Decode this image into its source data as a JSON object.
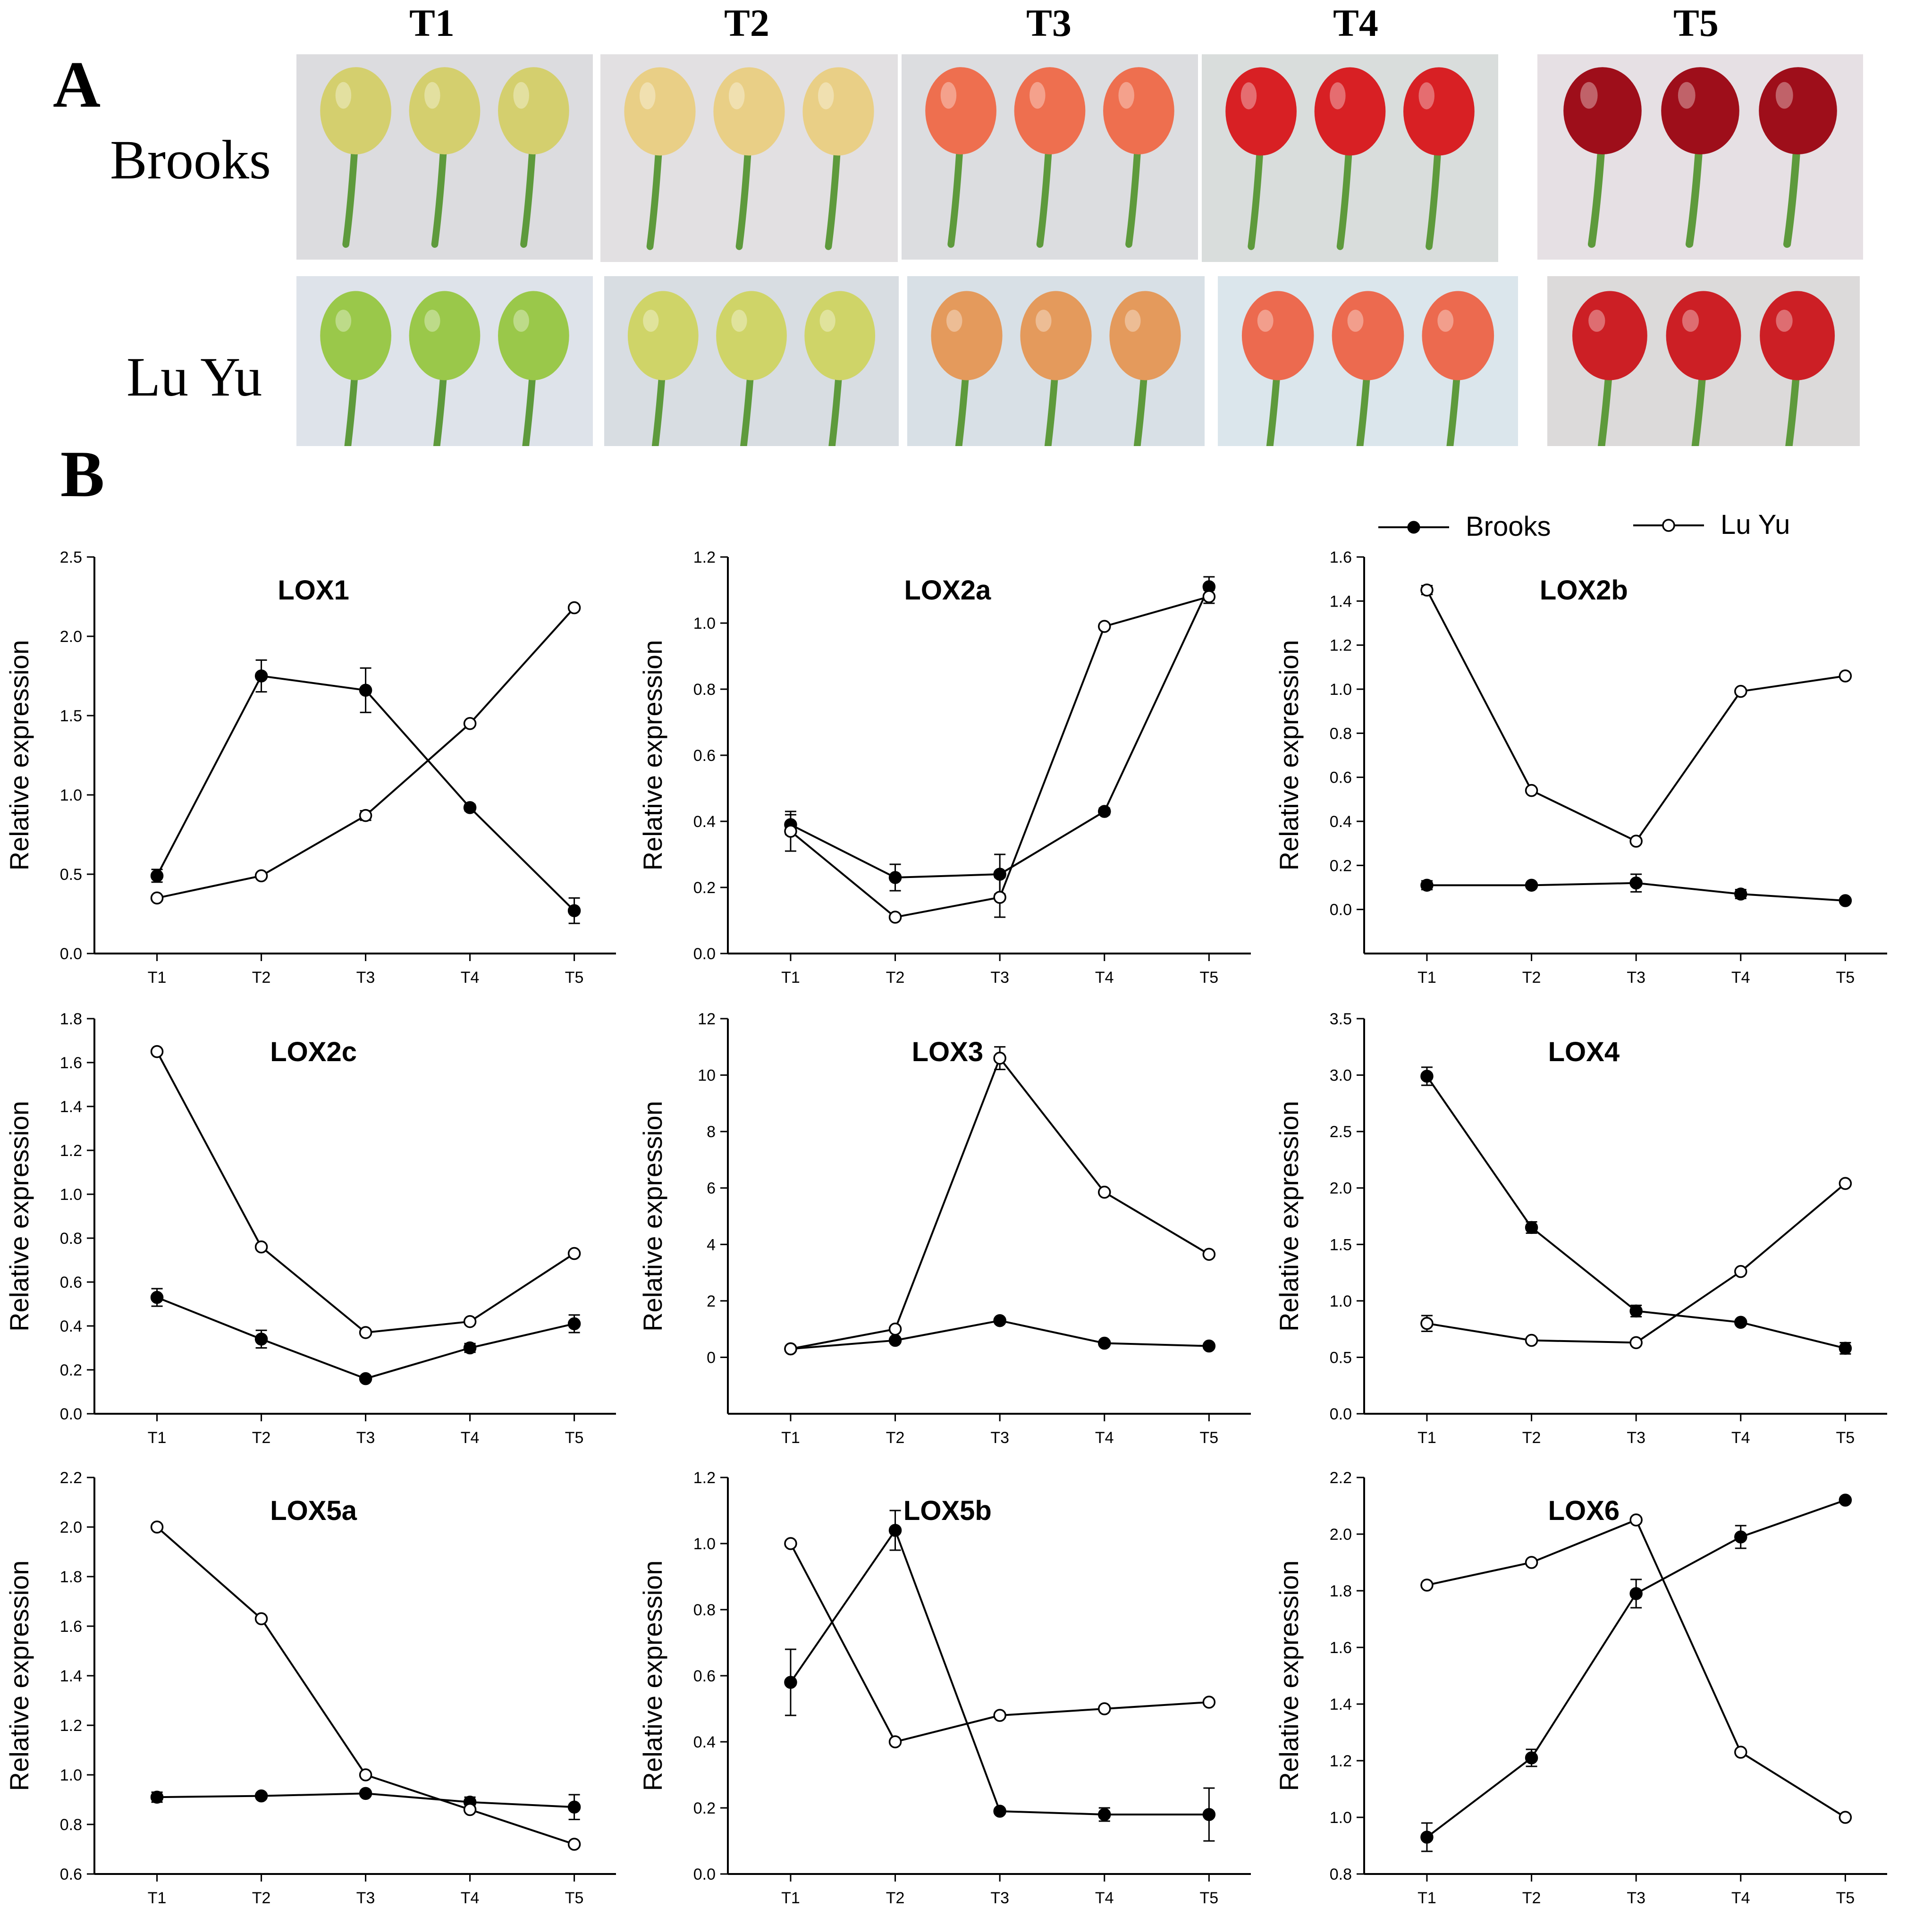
{
  "panel_a": {
    "letter": "A",
    "stages": [
      "T1",
      "T2",
      "T3",
      "T4",
      "T5"
    ],
    "rows": [
      {
        "cultivar": "Brooks",
        "fruit_colors": [
          "#d4cf6e",
          "#e9cf86",
          "#ee6f4f",
          "#d82024",
          "#9e0e1a"
        ],
        "background": [
          "#dcdcdf",
          "#e2e0e2",
          "#dcdde0",
          "#d9dddc",
          "#e6e0e4"
        ]
      },
      {
        "cultivar": "Lu Yu",
        "fruit_colors": [
          "#9ac84a",
          "#cfd468",
          "#e49a5c",
          "#ec6a4f",
          "#cc1f25"
        ],
        "background": [
          "#dee3ea",
          "#d8dde2",
          "#d8e0e6",
          "#dbe6ec",
          "#dcdada"
        ]
      }
    ],
    "stem_color": "#5e9a3c"
  },
  "panel_b": {
    "letter": "B",
    "legend": {
      "brooks": "Brooks",
      "luyu": "Lu Yu"
    }
  },
  "chart_data": [
    {
      "type": "line",
      "title": "LOX1",
      "ylabel": "Relative expression",
      "categories": [
        "T1",
        "T2",
        "T3",
        "T4",
        "T5"
      ],
      "ylim": [
        0,
        2.5
      ],
      "yticks": [
        "0.0",
        "0.5",
        "1.0",
        "1.5",
        "2.0",
        "2.5"
      ],
      "series": [
        {
          "name": "Brooks",
          "values": [
            0.49,
            1.75,
            1.66,
            0.92,
            0.27
          ],
          "err": [
            0.04,
            0.1,
            0.14,
            0.02,
            0.08
          ]
        },
        {
          "name": "Lu Yu",
          "values": [
            0.35,
            0.49,
            0.87,
            1.45,
            2.18
          ],
          "err": [
            0,
            0,
            0.03,
            0,
            0
          ]
        }
      ]
    },
    {
      "type": "line",
      "title": "LOX2a",
      "ylabel": "Relative expression",
      "categories": [
        "T1",
        "T2",
        "T3",
        "T4",
        "T5"
      ],
      "ylim": [
        0,
        1.2
      ],
      "yticks": [
        "0.0",
        "0.2",
        "0.4",
        "0.6",
        "0.8",
        "1.0",
        "1.2"
      ],
      "series": [
        {
          "name": "Brooks",
          "values": [
            0.39,
            0.23,
            0.24,
            0.43,
            1.11
          ],
          "err": [
            0.03,
            0.04,
            0.06,
            0.01,
            0.03
          ]
        },
        {
          "name": "Lu Yu",
          "values": [
            0.37,
            0.11,
            0.17,
            0.99,
            1.08
          ],
          "err": [
            0.06,
            0,
            0.06,
            0,
            0.02
          ]
        }
      ]
    },
    {
      "type": "line",
      "title": "LOX2b",
      "ylabel": "Relative expression",
      "categories": [
        "T1",
        "T2",
        "T3",
        "T4",
        "T5"
      ],
      "ylim": [
        -0.2,
        1.6
      ],
      "yticks": [
        "0.0",
        "0.2",
        "0.4",
        "0.6",
        "0.8",
        "1.0",
        "1.2",
        "1.4",
        "1.6"
      ],
      "series": [
        {
          "name": "Brooks",
          "values": [
            0.11,
            0.11,
            0.12,
            0.07,
            0.04
          ],
          "err": [
            0.02,
            0.01,
            0.04,
            0.02,
            0.01
          ]
        },
        {
          "name": "Lu Yu",
          "values": [
            1.45,
            0.54,
            0.31,
            0.99,
            1.06
          ],
          "err": [
            0.02,
            0,
            0,
            0,
            0
          ]
        }
      ]
    },
    {
      "type": "line",
      "title": "LOX2c",
      "ylabel": "Relative expression",
      "categories": [
        "T1",
        "T2",
        "T3",
        "T4",
        "T5"
      ],
      "ylim": [
        0,
        1.8
      ],
      "yticks": [
        "0.0",
        "0.2",
        "0.4",
        "0.6",
        "0.8",
        "1.0",
        "1.2",
        "1.4",
        "1.6",
        "1.8"
      ],
      "series": [
        {
          "name": "Brooks",
          "values": [
            0.53,
            0.34,
            0.16,
            0.3,
            0.41
          ],
          "err": [
            0.04,
            0.04,
            0.01,
            0.02,
            0.04
          ]
        },
        {
          "name": "Lu Yu",
          "values": [
            1.65,
            0.76,
            0.37,
            0.42,
            0.73
          ],
          "err": [
            0,
            0,
            0,
            0,
            0
          ]
        }
      ]
    },
    {
      "type": "line",
      "title": "LOX3",
      "ylabel": "Relative expression",
      "categories": [
        "T1",
        "T2",
        "T3",
        "T4",
        "T5"
      ],
      "ylim": [
        -2,
        12
      ],
      "yticks": [
        "0",
        "2",
        "4",
        "6",
        "8",
        "10",
        "12"
      ],
      "series": [
        {
          "name": "Brooks",
          "values": [
            0.3,
            0.6,
            1.3,
            0.5,
            0.4
          ],
          "err": [
            0,
            0,
            0,
            0,
            0
          ]
        },
        {
          "name": "Lu Yu",
          "values": [
            0.3,
            1.0,
            10.6,
            5.85,
            3.65
          ],
          "err": [
            0,
            0,
            0.4,
            0,
            0
          ]
        }
      ]
    },
    {
      "type": "line",
      "title": "LOX4",
      "ylabel": "Relative expression",
      "categories": [
        "T1",
        "T2",
        "T3",
        "T4",
        "T5"
      ],
      "ylim": [
        0,
        3.5
      ],
      "yticks": [
        "0.0",
        "0.5",
        "1.0",
        "1.5",
        "2.0",
        "2.5",
        "3.0",
        "3.5"
      ],
      "series": [
        {
          "name": "Brooks",
          "values": [
            2.99,
            1.65,
            0.91,
            0.81,
            0.58
          ],
          "err": [
            0.08,
            0.05,
            0.05,
            0.02,
            0.05
          ]
        },
        {
          "name": "Lu Yu",
          "values": [
            0.8,
            0.65,
            0.63,
            1.26,
            2.04
          ],
          "err": [
            0.07,
            0,
            0,
            0,
            0
          ]
        }
      ]
    },
    {
      "type": "line",
      "title": "LOX5a",
      "ylabel": "Relative expression",
      "categories": [
        "T1",
        "T2",
        "T3",
        "T4",
        "T5"
      ],
      "ylim": [
        0.6,
        2.2
      ],
      "yticks": [
        "0.6",
        "0.8",
        "1.0",
        "1.2",
        "1.4",
        "1.6",
        "1.8",
        "2.0",
        "2.2"
      ],
      "series": [
        {
          "name": "Brooks",
          "values": [
            0.91,
            0.915,
            0.925,
            0.89,
            0.87
          ],
          "err": [
            0.02,
            0.01,
            0.01,
            0.02,
            0.05
          ]
        },
        {
          "name": "Lu Yu",
          "values": [
            2.0,
            1.63,
            1.0,
            0.86,
            0.72
          ],
          "err": [
            0,
            0,
            0,
            0,
            0
          ]
        }
      ]
    },
    {
      "type": "line",
      "title": "LOX5b",
      "ylabel": "Relative expression",
      "categories": [
        "T1",
        "T2",
        "T3",
        "T4",
        "T5"
      ],
      "ylim": [
        0,
        1.2
      ],
      "yticks": [
        "0.0",
        "0.2",
        "0.4",
        "0.6",
        "0.8",
        "1.0",
        "1.2"
      ],
      "series": [
        {
          "name": "Brooks",
          "values": [
            0.58,
            1.04,
            0.19,
            0.18,
            0.18
          ],
          "err": [
            0.1,
            0.06,
            0,
            0.02,
            0.08
          ]
        },
        {
          "name": "Lu Yu",
          "values": [
            1.0,
            0.4,
            0.48,
            0.5,
            0.52
          ],
          "err": [
            0,
            0,
            0,
            0,
            0
          ]
        }
      ]
    },
    {
      "type": "line",
      "title": "LOX6",
      "ylabel": "Relative expression",
      "categories": [
        "T1",
        "T2",
        "T3",
        "T4",
        "T5"
      ],
      "ylim": [
        0.8,
        2.2
      ],
      "yticks": [
        "0.8",
        "1.0",
        "1.2",
        "1.4",
        "1.6",
        "1.8",
        "2.0",
        "2.2"
      ],
      "series": [
        {
          "name": "Brooks",
          "values": [
            0.93,
            1.21,
            1.79,
            1.99,
            2.12
          ],
          "err": [
            0.05,
            0.03,
            0.05,
            0.04,
            0.01
          ]
        },
        {
          "name": "Lu Yu",
          "values": [
            1.82,
            1.9,
            2.05,
            1.23,
            1.0
          ],
          "err": [
            0,
            0,
            0,
            0,
            0
          ]
        }
      ]
    }
  ]
}
